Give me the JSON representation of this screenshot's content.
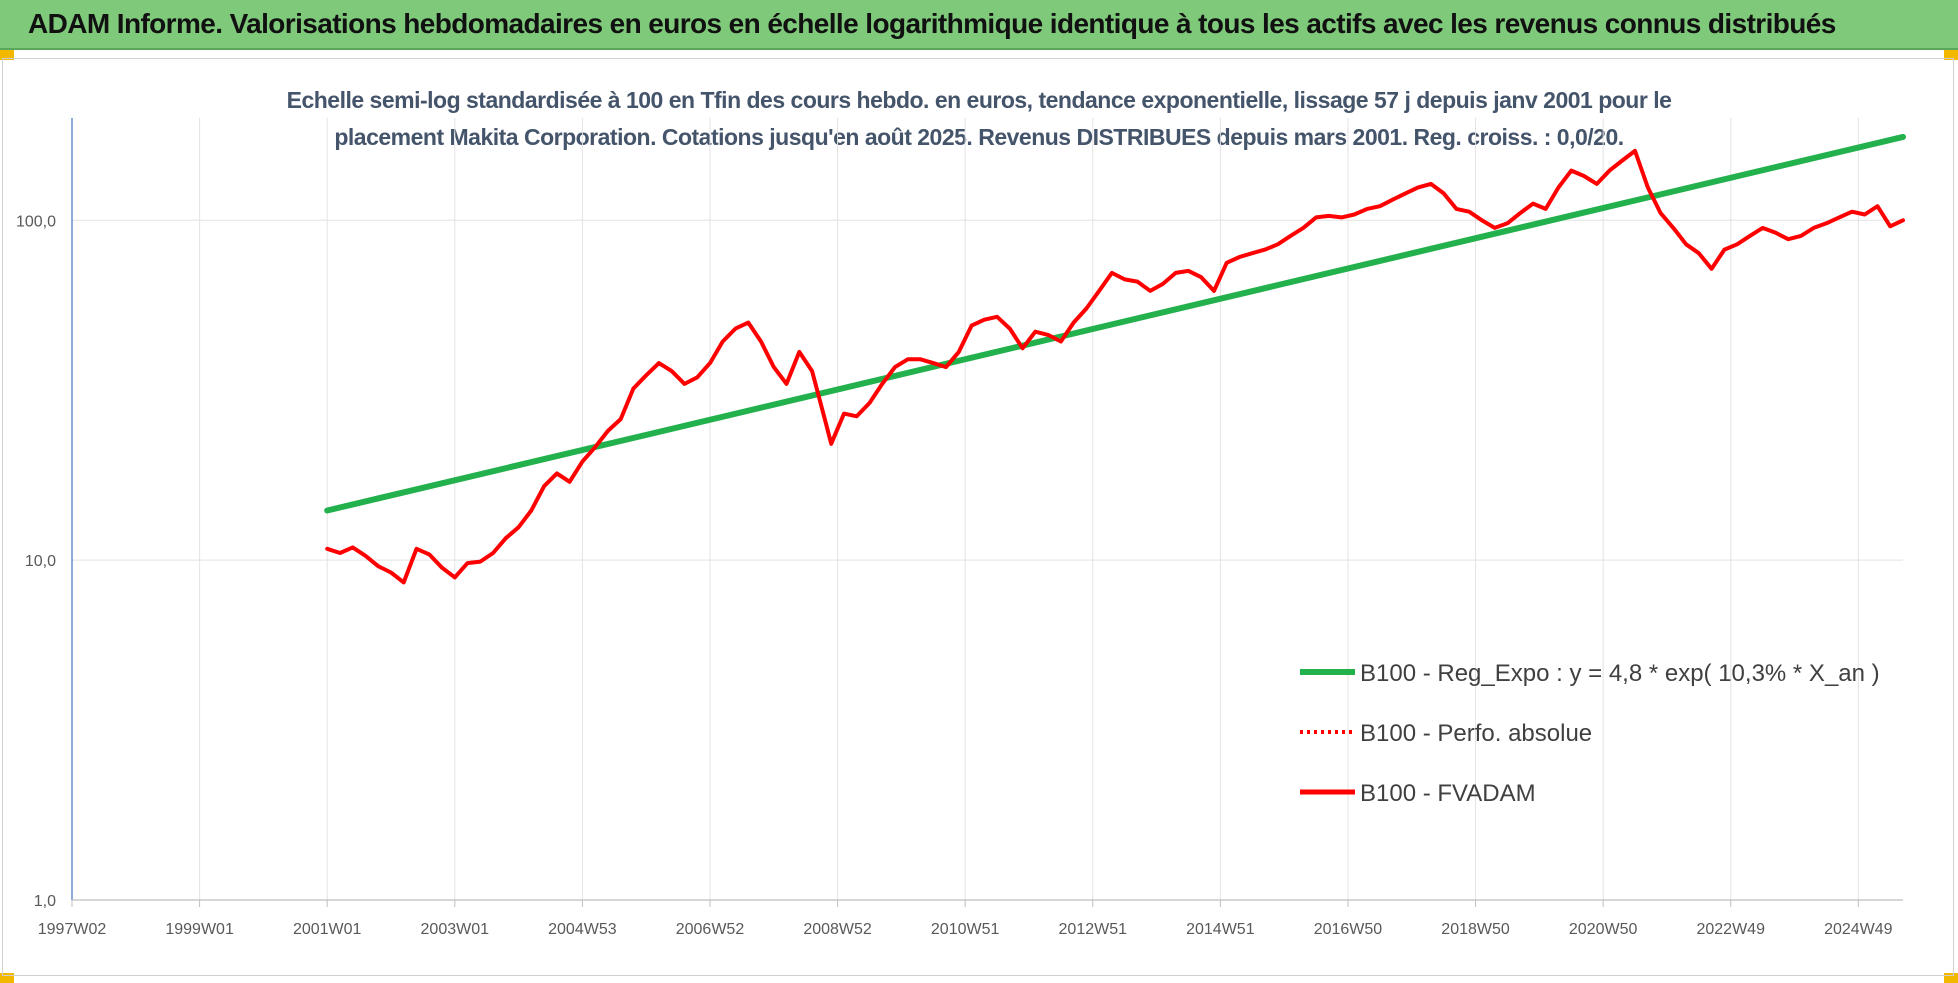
{
  "header": {
    "title": "ADAM Informe. Valorisations hebdomadaires en euros en échelle logarithmique identique à tous les actifs avec les revenus connus distribués"
  },
  "colors": {
    "header_bg": "#7fc97a",
    "corner_accent": "#f2b800",
    "trend": "#22b14c",
    "perfo": "#ff0000",
    "fvadam": "#ff0000",
    "subtitle": "#44546a"
  },
  "chart_data": {
    "type": "line",
    "title_line1": "Echelle semi-log standardisée à 100 en Tfin des cours hebdo. en euros, tendance exponentielle, lissage 57 j depuis janv 2001 pour le",
    "title_line2": "placement Makita Corporation. Cotations jusqu'en août 2025. Revenus DISTRIBUES depuis mars 2001. Reg. croiss. : 0,0/20.",
    "xlabel": "",
    "ylabel": "",
    "y_scale": "log",
    "ylim": [
      1,
      200
    ],
    "xlim": [
      1997.0,
      2025.7
    ],
    "grid": true,
    "legend_position": "right",
    "y_ticks": [
      {
        "value": 1,
        "label": "1,0"
      },
      {
        "value": 10,
        "label": "10,0"
      },
      {
        "value": 100,
        "label": "100,0"
      }
    ],
    "x_ticks": [
      {
        "value": 1997.0,
        "label": "1997W02"
      },
      {
        "value": 1999.0,
        "label": "1999W01"
      },
      {
        "value": 2001.0,
        "label": "2001W01"
      },
      {
        "value": 2003.0,
        "label": "2003W01"
      },
      {
        "value": 2005.0,
        "label": "2004W53"
      },
      {
        "value": 2007.0,
        "label": "2006W52"
      },
      {
        "value": 2009.0,
        "label": "2008W52"
      },
      {
        "value": 2011.0,
        "label": "2010W51"
      },
      {
        "value": 2013.0,
        "label": "2012W51"
      },
      {
        "value": 2015.0,
        "label": "2014W51"
      },
      {
        "value": 2017.0,
        "label": "2016W50"
      },
      {
        "value": 2019.0,
        "label": "2018W50"
      },
      {
        "value": 2021.0,
        "label": "2020W50"
      },
      {
        "value": 2023.0,
        "label": "2022W49"
      },
      {
        "value": 2025.0,
        "label": "2024W49"
      }
    ],
    "series": [
      {
        "name": "B100 - Reg_Expo : y = 4,8 * exp( 10,3% *  X_an )",
        "style": "solid-thick",
        "color": "#22b14c",
        "x": [
          2001.0,
          2025.7
        ],
        "y": [
          14.0,
          176.0
        ]
      },
      {
        "name": "B100 - Perfo. absolue",
        "style": "dotted",
        "color": "#ff0000",
        "x": [],
        "y": []
      },
      {
        "name": "B100 - FVADAM",
        "style": "solid",
        "color": "#ff0000",
        "x": [
          2001.0,
          2001.2,
          2001.4,
          2001.6,
          2001.8,
          2002.0,
          2002.2,
          2002.4,
          2002.6,
          2002.8,
          2003.0,
          2003.2,
          2003.4,
          2003.6,
          2003.8,
          2004.0,
          2004.2,
          2004.4,
          2004.6,
          2004.8,
          2005.0,
          2005.2,
          2005.4,
          2005.6,
          2005.8,
          2006.0,
          2006.2,
          2006.4,
          2006.6,
          2006.8,
          2007.0,
          2007.2,
          2007.4,
          2007.6,
          2007.8,
          2008.0,
          2008.2,
          2008.4,
          2008.6,
          2008.8,
          2008.9,
          2009.1,
          2009.3,
          2009.5,
          2009.7,
          2009.9,
          2010.1,
          2010.3,
          2010.5,
          2010.7,
          2010.9,
          2011.1,
          2011.3,
          2011.5,
          2011.7,
          2011.9,
          2012.1,
          2012.3,
          2012.5,
          2012.7,
          2012.9,
          2013.1,
          2013.3,
          2013.5,
          2013.7,
          2013.9,
          2014.1,
          2014.3,
          2014.5,
          2014.7,
          2014.9,
          2015.1,
          2015.3,
          2015.5,
          2015.7,
          2015.9,
          2016.1,
          2016.3,
          2016.5,
          2016.7,
          2016.9,
          2017.1,
          2017.3,
          2017.5,
          2017.7,
          2017.9,
          2018.1,
          2018.3,
          2018.5,
          2018.7,
          2018.9,
          2019.1,
          2019.3,
          2019.5,
          2019.7,
          2019.9,
          2020.1,
          2020.3,
          2020.5,
          2020.7,
          2020.9,
          2021.1,
          2021.3,
          2021.5,
          2021.7,
          2021.9,
          2022.1,
          2022.3,
          2022.5,
          2022.7,
          2022.9,
          2023.1,
          2023.3,
          2023.5,
          2023.7,
          2023.9,
          2024.1,
          2024.3,
          2024.5,
          2024.7,
          2024.9,
          2025.1,
          2025.3,
          2025.5,
          2025.7
        ],
        "y": [
          10.8,
          10.5,
          10.9,
          10.3,
          9.6,
          9.2,
          8.6,
          10.8,
          10.4,
          9.5,
          8.9,
          9.8,
          9.9,
          10.5,
          11.6,
          12.5,
          14.0,
          16.5,
          18.0,
          17.0,
          19.5,
          21.5,
          24.0,
          26.0,
          32.0,
          35.0,
          38.0,
          36.0,
          33.0,
          34.5,
          38.0,
          44.0,
          48.0,
          50.0,
          44.0,
          37.0,
          33.0,
          41.0,
          36.0,
          26.0,
          22.0,
          27.0,
          26.5,
          29.0,
          33.0,
          37.0,
          39.0,
          39.0,
          38.0,
          37.0,
          41.0,
          49.0,
          51.0,
          52.0,
          48.0,
          42.0,
          47.0,
          46.0,
          44.0,
          50.0,
          55.0,
          62.0,
          70.0,
          67.0,
          66.0,
          62.0,
          65.0,
          70.0,
          71.0,
          68.0,
          62.0,
          75.0,
          78.0,
          80.0,
          82.0,
          85.0,
          90.0,
          95.0,
          102.0,
          103.0,
          102.0,
          104.0,
          108.0,
          110.0,
          115.0,
          120.0,
          125.0,
          128.0,
          120.0,
          108.0,
          106.0,
          100.0,
          95.0,
          98.0,
          105.0,
          112.0,
          108.0,
          125.0,
          140.0,
          135.0,
          128.0,
          140.0,
          150.0,
          160.0,
          125.0,
          105.0,
          95.0,
          85.0,
          80.0,
          72.0,
          82.0,
          85.0,
          90.0,
          95.0,
          92.0,
          88.0,
          90.0,
          95.0,
          98.0,
          102.0,
          106.0,
          104.0,
          110.0,
          96.0,
          100.0
        ]
      }
    ]
  }
}
